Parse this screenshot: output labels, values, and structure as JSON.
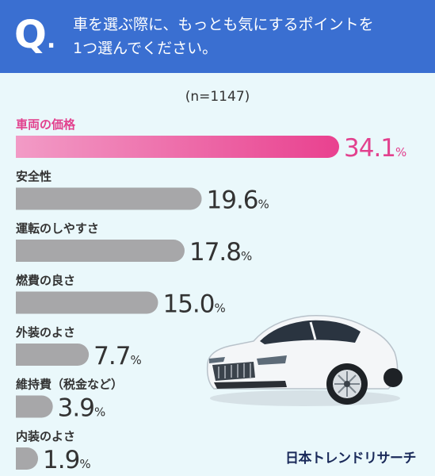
{
  "header": {
    "q_mark": "Q",
    "question": "車を選ぶ際に、もっとも気にするポイントを\n1つ選んでください。"
  },
  "n_label": "(n=1147)",
  "brand": "日本トレンドリサーチ",
  "colors": {
    "header_bg": "#3a6fd1",
    "background": "#eaf8fb",
    "highlight_bar_start": "#f29bc6",
    "highlight_bar_end": "#e9418f",
    "highlight_text": "#e2418e",
    "bar": "#a7a7a9",
    "text": "#333333"
  },
  "chart_data": {
    "type": "bar",
    "orientation": "horizontal",
    "categories": [
      "車両の価格",
      "安全性",
      "運転のしやすさ",
      "燃費の良さ",
      "外装のよさ",
      "維持費（税金など）",
      "内装のよさ"
    ],
    "values": [
      34.1,
      19.6,
      17.8,
      15.0,
      7.7,
      3.9,
      1.9
    ],
    "value_labels": [
      "34.1",
      "19.6",
      "17.8",
      "15.0",
      "7.7",
      "3.9",
      "1.9"
    ],
    "unit": "%",
    "highlight_index": 0,
    "grid": false,
    "xlim": [
      0,
      34.1
    ]
  }
}
